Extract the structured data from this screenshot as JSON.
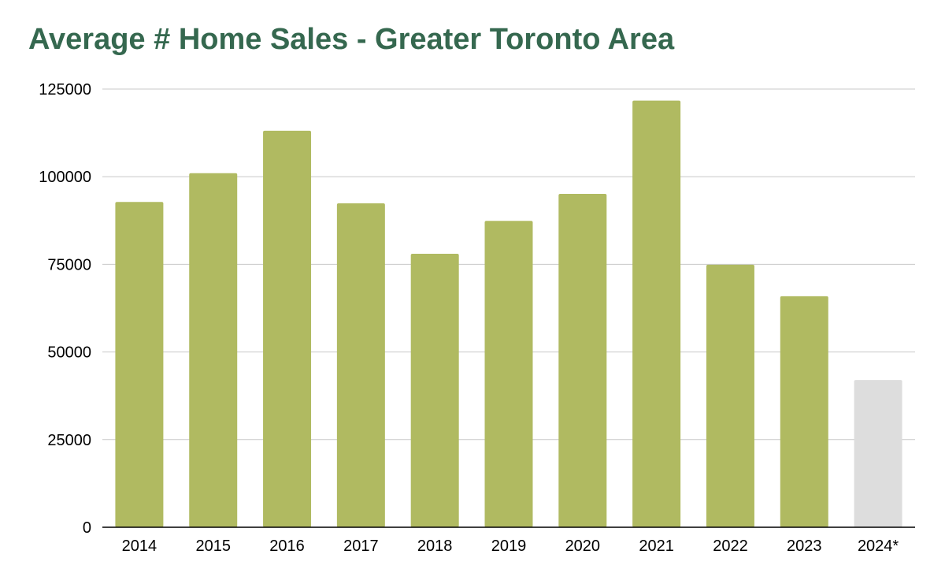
{
  "chart_data": {
    "type": "bar",
    "title": "Average # Home Sales - Greater Toronto Area",
    "xlabel": "",
    "ylabel": "",
    "categories": [
      "2014",
      "2015",
      "2016",
      "2017",
      "2018",
      "2019",
      "2020",
      "2021",
      "2022",
      "2023",
      "2024*"
    ],
    "values": [
      92800,
      101000,
      113100,
      92400,
      78000,
      87400,
      95100,
      121700,
      74900,
      65900,
      42000
    ],
    "ylim": [
      0,
      125000
    ],
    "yticks": [
      "0",
      "25000",
      "50000",
      "75000",
      "100000",
      "125000"
    ],
    "grid": true,
    "legend": "none",
    "colors": {
      "bar": "#b0ba61",
      "bar_highlight": "#dddddd",
      "grid": "#c8c8c8",
      "axis": "#000000",
      "title": "#35684f"
    }
  }
}
